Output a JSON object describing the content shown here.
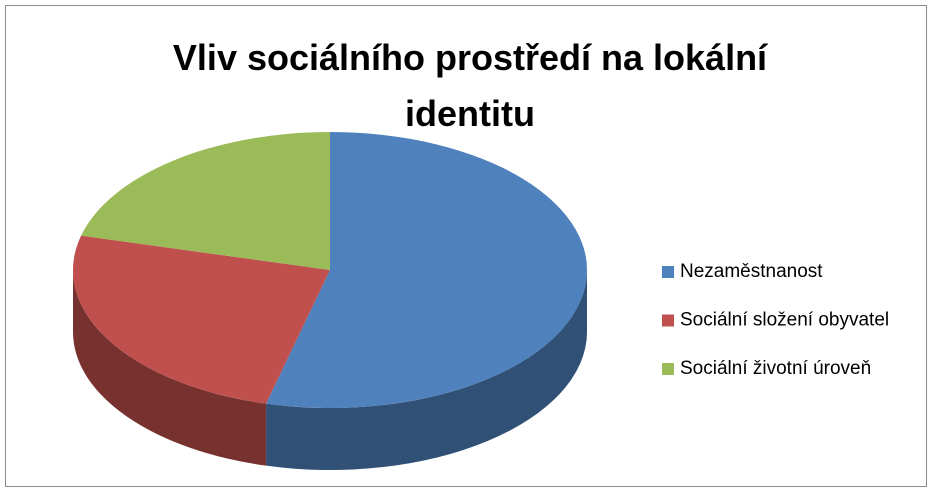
{
  "chart_data": {
    "type": "pie",
    "title": "Vliv sociálního prostředí na lokální identitu",
    "categories": [
      "Nezaměstnanost",
      "Sociální složení obyvatel",
      "Sociální životní úroveň"
    ],
    "values": [
      54,
      25,
      21
    ],
    "colors": [
      "#4f81bd",
      "#c0504d",
      "#9bbb59"
    ],
    "legend": "right"
  }
}
